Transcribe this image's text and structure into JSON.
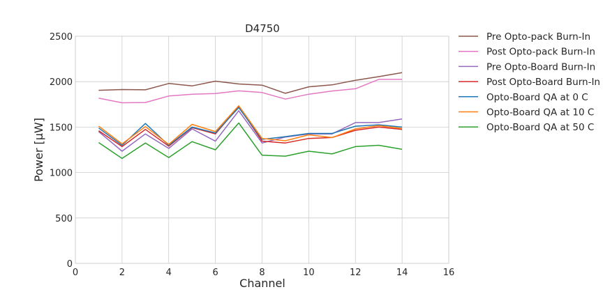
{
  "chart_data": {
    "type": "line",
    "title": "D4750",
    "xlabel": "Channel",
    "ylabel": "Power [μW]",
    "xlim": [
      0,
      16
    ],
    "ylim": [
      0,
      2500
    ],
    "xticks": [
      0,
      2,
      4,
      6,
      8,
      10,
      12,
      14,
      16
    ],
    "yticks": [
      0,
      500,
      1000,
      1500,
      2000,
      2500
    ],
    "grid": true,
    "legend_placement": "outside-right-top",
    "x": [
      1,
      2,
      3,
      4,
      5,
      6,
      7,
      8,
      9,
      10,
      11,
      12,
      13,
      14
    ],
    "series": [
      {
        "name": "Pre Opto-pack Burn-In",
        "color": "#8c564b",
        "values": [
          1905,
          1913,
          1910,
          1980,
          1953,
          2005,
          1975,
          1962,
          1872,
          1943,
          1965,
          2015,
          2055,
          2100
        ]
      },
      {
        "name": "Post Opto-pack Burn-In",
        "color": "#e377c2",
        "values": [
          1818,
          1768,
          1771,
          1842,
          1862,
          1869,
          1899,
          1880,
          1808,
          1862,
          1897,
          1922,
          2025,
          2025
        ]
      },
      {
        "name": "Pre Opto-Board Burn-In",
        "color": "#9467bd",
        "values": [
          1450,
          1235,
          1425,
          1265,
          1480,
          1345,
          1680,
          1325,
          1390,
          1425,
          1425,
          1550,
          1550,
          1590
        ]
      },
      {
        "name": "Post Opto-Board Burn-In",
        "color": "#d62728",
        "values": [
          1460,
          1285,
          1475,
          1290,
          1495,
          1425,
          1725,
          1345,
          1325,
          1375,
          1385,
          1465,
          1500,
          1475
        ]
      },
      {
        "name": "Opto-Board QA at 0 C",
        "color": "#1f77b4",
        "values": [
          1490,
          1300,
          1540,
          1300,
          1500,
          1435,
          1715,
          1365,
          1395,
          1430,
          1430,
          1510,
          1525,
          1500
        ]
      },
      {
        "name": "Opto-Board QA at 10 C",
        "color": "#ff7f0e",
        "values": [
          1510,
          1315,
          1505,
          1310,
          1530,
          1450,
          1735,
          1375,
          1350,
          1415,
          1385,
          1480,
          1515,
          1485
        ]
      },
      {
        "name": "Opto-Board QA at 50 C",
        "color": "#2ca02c",
        "values": [
          1330,
          1155,
          1325,
          1165,
          1340,
          1250,
          1545,
          1190,
          1180,
          1235,
          1205,
          1285,
          1300,
          1255
        ]
      }
    ]
  }
}
